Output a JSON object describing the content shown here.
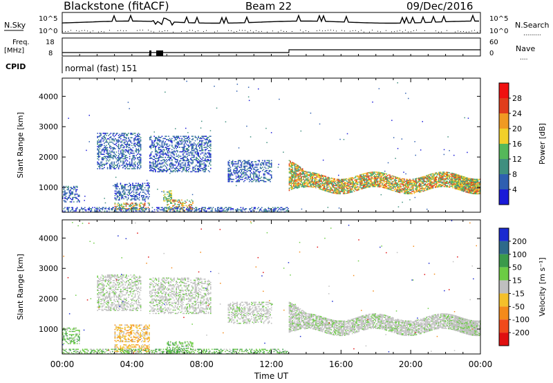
{
  "header": {
    "station": "Blackstone (fitACF)",
    "beam": "Beam 22",
    "date": "09/Dec/2016"
  },
  "strips": {
    "nsky_label": "N.Sky",
    "nsky_tick_top": "10^5",
    "nsky_tick_bottom": "10^0",
    "nsearch_label": "N.Search",
    "nsearch_tick_top": "10^5",
    "nsearch_tick_bottom": "10^0",
    "freq_label": "Freq.",
    "freq_unit": "[MHz]",
    "freq_tick_top": "18",
    "freq_tick_bottom": "8",
    "nave_label": "Nave",
    "nave_tick_top": "60",
    "nave_tick_bottom": "0",
    "cpid_label": "CPID",
    "cpid_value": "normal (fast) 151"
  },
  "chart_data": [
    {
      "type": "heatmap",
      "panel": "power",
      "ylabel": "Slant Range [km]",
      "yticks": [
        "1000",
        "2000",
        "3000",
        "4000"
      ],
      "ylim": [
        180,
        4600
      ],
      "colorbar_label": "Power [dB]",
      "colorbar_ticks": [
        "4",
        "8",
        "12",
        "16",
        "20",
        "24",
        "28"
      ],
      "colorbar_colors": [
        "#1a1ad8",
        "#2f5fb0",
        "#3f8f7f",
        "#55b85a",
        "#f2d02a",
        "#f09a22",
        "#e03d1b",
        "#f01010"
      ],
      "bands": [
        {
          "t0": 0.0,
          "t1": 1.0,
          "r0": 520,
          "r1": 1050,
          "level": "low"
        },
        {
          "t0": 3.0,
          "t1": 5.0,
          "r0": 600,
          "r1": 1150,
          "level": "low"
        },
        {
          "t0": 3.0,
          "t1": 5.0,
          "r0": 250,
          "r1": 500,
          "level": "high"
        },
        {
          "t0": 5.8,
          "t1": 6.3,
          "r0": 550,
          "r1": 900,
          "level": "mid"
        },
        {
          "t0": 6.0,
          "t1": 7.5,
          "r0": 200,
          "r1": 600,
          "level": "high"
        },
        {
          "t0": 2.0,
          "t1": 4.5,
          "r0": 1600,
          "r1": 2800,
          "level": "low"
        },
        {
          "t0": 5.0,
          "t1": 8.5,
          "r0": 1500,
          "r1": 2700,
          "level": "low"
        },
        {
          "t0": 9.5,
          "t1": 12.0,
          "r0": 1200,
          "r1": 1900,
          "level": "low"
        },
        {
          "t0": 13.0,
          "t1": 23.8,
          "r0": 700,
          "r1": 1800,
          "level": "high"
        },
        {
          "t0": 0.0,
          "t1": 13.0,
          "r0": 180,
          "r1": 350,
          "level": "low"
        },
        {
          "t0": 22.5,
          "t1": 24.0,
          "r0": 280,
          "r1": 780,
          "level": "high"
        }
      ]
    },
    {
      "type": "heatmap",
      "panel": "velocity",
      "xlabel": "Time UT",
      "xticks": [
        "00:00",
        "04:00",
        "08:00",
        "12:00",
        "16:00",
        "20:00",
        "00:00"
      ],
      "xlim": [
        0,
        24
      ],
      "ylabel": "Slant Range [km]",
      "yticks": [
        "1000",
        "2000",
        "3000",
        "4000"
      ],
      "ylim": [
        180,
        4600
      ],
      "colorbar_label": "Velocity [m s⁻¹]",
      "colorbar_ticks": [
        "200",
        "100",
        "50",
        "15",
        "-15",
        "-50",
        "-100",
        "-200"
      ],
      "colorbar_colors": [
        "#1a2ad0",
        "#2e6a8a",
        "#3a9a4a",
        "#6ccc44",
        "#bfbfbf",
        "#f4c02a",
        "#f48a1a",
        "#f04a1a",
        "#e01010"
      ],
      "bands": [
        {
          "t0": 0.0,
          "t1": 1.0,
          "r0": 520,
          "r1": 1050,
          "level": "pos"
        },
        {
          "t0": 3.0,
          "t1": 5.0,
          "r0": 600,
          "r1": 1150,
          "level": "neg"
        },
        {
          "t0": 3.0,
          "t1": 5.0,
          "r0": 250,
          "r1": 500,
          "level": "neg"
        },
        {
          "t0": 6.0,
          "t1": 7.5,
          "r0": 200,
          "r1": 600,
          "level": "pos"
        },
        {
          "t0": 2.0,
          "t1": 4.5,
          "r0": 1600,
          "r1": 2800,
          "level": "zero"
        },
        {
          "t0": 5.0,
          "t1": 8.5,
          "r0": 1500,
          "r1": 2700,
          "level": "zero"
        },
        {
          "t0": 9.5,
          "t1": 12.0,
          "r0": 1200,
          "r1": 1900,
          "level": "zero"
        },
        {
          "t0": 13.0,
          "t1": 23.8,
          "r0": 700,
          "r1": 1800,
          "level": "zero"
        },
        {
          "t0": 0.0,
          "t1": 13.0,
          "r0": 180,
          "r1": 350,
          "level": "pos"
        },
        {
          "t0": 22.5,
          "t1": 24.0,
          "r0": 280,
          "r1": 780,
          "level": "zero"
        }
      ]
    }
  ]
}
